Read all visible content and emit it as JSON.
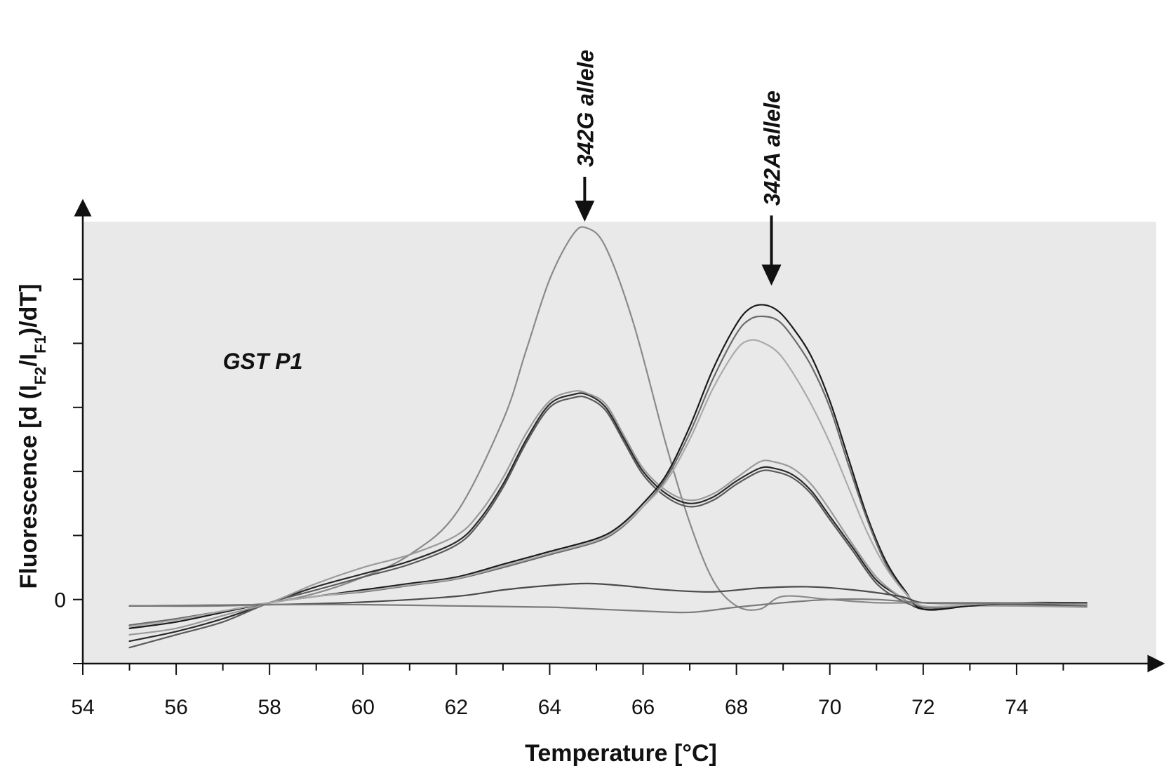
{
  "chart_data": {
    "type": "line",
    "title": "",
    "xlabel": "Temperature [°C]",
    "ylabel": "Fluorescence [d (IF2/IF1)/dT]",
    "ylabel_parts": {
      "pre": "Fluorescence [d (I",
      "sub1": "F2",
      "mid": "/I",
      "sub2": "F1",
      "post": ")/dT]"
    },
    "xlim": [
      54,
      76
    ],
    "ylim": [
      -1,
      5.9
    ],
    "x_ticks": [
      54,
      56,
      58,
      60,
      62,
      64,
      66,
      68,
      70,
      72,
      74
    ],
    "y_tick_labels": [
      {
        "value": 0,
        "label": "0"
      }
    ],
    "y_minor_ticks": [
      -1,
      0,
      1,
      2,
      3,
      4,
      5
    ],
    "grid": false,
    "annotations": [
      {
        "text": "GST P1",
        "x": 57.0,
        "y": 3.6
      },
      {
        "text": "342G allele",
        "x": 64.75,
        "arrow_tip_y": 5.9
      },
      {
        "text": "342A allele",
        "x": 68.75,
        "arrow_tip_y": 4.9
      }
    ],
    "series": [
      {
        "color": "#8a8a8a",
        "x": [
          55,
          57,
          58,
          59,
          60,
          61,
          62,
          63,
          63.5,
          64,
          64.5,
          64.8,
          65.2,
          65.8,
          66.5,
          67,
          67.5,
          68,
          68.5,
          69,
          70,
          71,
          72,
          73,
          74,
          75.5
        ],
        "y": [
          -0.1,
          -0.1,
          -0.05,
          0.1,
          0.35,
          0.7,
          1.35,
          2.8,
          3.9,
          5.0,
          5.7,
          5.8,
          5.5,
          4.3,
          2.4,
          1.2,
          0.3,
          -0.1,
          -0.15,
          0.05,
          0.0,
          -0.05,
          -0.05,
          -0.05,
          -0.05,
          -0.05
        ]
      },
      {
        "color": "#2a2a2a",
        "x": [
          55,
          56,
          57,
          58,
          59,
          60,
          61,
          62,
          62.5,
          63,
          63.5,
          64,
          64.5,
          64.8,
          65.2,
          65.6,
          66,
          66.5,
          67,
          67.5,
          68,
          68.5,
          68.8,
          69.2,
          69.6,
          70,
          70.5,
          71,
          71.5,
          72,
          73,
          74,
          75.5
        ],
        "y": [
          -0.65,
          -0.5,
          -0.3,
          -0.05,
          0.2,
          0.4,
          0.6,
          0.9,
          1.25,
          1.8,
          2.5,
          3.05,
          3.2,
          3.2,
          3.0,
          2.5,
          2.0,
          1.65,
          1.5,
          1.6,
          1.85,
          2.05,
          2.05,
          1.95,
          1.7,
          1.3,
          0.8,
          0.3,
          0.05,
          -0.15,
          -0.1,
          -0.08,
          -0.08
        ]
      },
      {
        "color": "#5a5a5a",
        "x": [
          55,
          56,
          57,
          58,
          59,
          60,
          61,
          62,
          62.5,
          63,
          63.5,
          64,
          64.5,
          64.8,
          65.2,
          65.6,
          66,
          66.5,
          67,
          67.5,
          68,
          68.5,
          68.8,
          69.2,
          69.6,
          70,
          70.5,
          71,
          71.5,
          72,
          73,
          74,
          75.5
        ],
        "y": [
          -0.75,
          -0.55,
          -0.35,
          -0.05,
          0.15,
          0.35,
          0.55,
          0.85,
          1.2,
          1.75,
          2.45,
          3.0,
          3.15,
          3.15,
          2.95,
          2.45,
          1.95,
          1.6,
          1.45,
          1.55,
          1.8,
          2.0,
          2.0,
          1.9,
          1.65,
          1.25,
          0.75,
          0.25,
          0.0,
          -0.12,
          -0.1,
          -0.08,
          -0.1
        ]
      },
      {
        "color": "#9a9a9a",
        "x": [
          55,
          56,
          57,
          58,
          59,
          60,
          61,
          62,
          62.5,
          63,
          63.5,
          64,
          64.5,
          64.8,
          65.2,
          65.6,
          66,
          66.5,
          67,
          67.5,
          68,
          68.5,
          68.8,
          69.2,
          69.6,
          70,
          70.5,
          71,
          71.5,
          72,
          73,
          74,
          75.5
        ],
        "y": [
          -0.55,
          -0.45,
          -0.25,
          -0.05,
          0.25,
          0.5,
          0.7,
          1.0,
          1.35,
          1.9,
          2.6,
          3.1,
          3.25,
          3.22,
          3.05,
          2.55,
          2.05,
          1.7,
          1.55,
          1.65,
          1.9,
          2.15,
          2.15,
          2.05,
          1.8,
          1.4,
          0.85,
          0.35,
          0.05,
          -0.12,
          -0.1,
          -0.1,
          -0.12
        ]
      },
      {
        "color": "#1a1a1a",
        "x": [
          55,
          56,
          57,
          58,
          59,
          60,
          61,
          62,
          63,
          64,
          65,
          65.5,
          66,
          66.5,
          67,
          67.5,
          68,
          68.3,
          68.6,
          68.9,
          69.2,
          69.6,
          70,
          70.4,
          70.8,
          71.2,
          71.6,
          72,
          73,
          74,
          75.5
        ],
        "y": [
          -0.45,
          -0.35,
          -0.2,
          -0.05,
          0.05,
          0.15,
          0.25,
          0.35,
          0.55,
          0.75,
          0.95,
          1.15,
          1.5,
          1.95,
          2.7,
          3.6,
          4.3,
          4.55,
          4.6,
          4.5,
          4.25,
          3.8,
          3.1,
          2.2,
          1.3,
          0.6,
          0.15,
          -0.15,
          -0.1,
          -0.05,
          -0.05
        ]
      },
      {
        "color": "#6a6a6a",
        "x": [
          55,
          56,
          57,
          58,
          59,
          60,
          61,
          62,
          63,
          64,
          65,
          65.5,
          66,
          66.5,
          67,
          67.5,
          68,
          68.3,
          68.6,
          68.9,
          69.2,
          69.6,
          70,
          70.4,
          70.8,
          71.2,
          71.6,
          72,
          73,
          74,
          75.5
        ],
        "y": [
          -0.4,
          -0.3,
          -0.18,
          -0.05,
          0.05,
          0.12,
          0.22,
          0.32,
          0.5,
          0.7,
          0.9,
          1.1,
          1.45,
          1.9,
          2.6,
          3.45,
          4.15,
          4.38,
          4.42,
          4.35,
          4.1,
          3.65,
          3.0,
          2.1,
          1.25,
          0.55,
          0.12,
          -0.12,
          -0.08,
          -0.05,
          -0.08
        ]
      },
      {
        "color": "#aaaaaa",
        "x": [
          55,
          56,
          57,
          58,
          59,
          60,
          61,
          62,
          63,
          64,
          65,
          65.5,
          66,
          66.5,
          67,
          67.5,
          68,
          68.3,
          68.6,
          68.9,
          69.2,
          69.6,
          70,
          70.4,
          70.8,
          71.2,
          71.6,
          72,
          73,
          74,
          75.5
        ],
        "y": [
          -0.42,
          -0.32,
          -0.18,
          -0.05,
          0.05,
          0.13,
          0.23,
          0.33,
          0.52,
          0.72,
          0.92,
          1.12,
          1.45,
          1.85,
          2.5,
          3.3,
          3.9,
          4.05,
          4.0,
          3.85,
          3.55,
          3.05,
          2.45,
          1.75,
          1.05,
          0.5,
          0.12,
          -0.1,
          -0.08,
          -0.05,
          -0.08
        ]
      },
      {
        "color": "#4a4a4a",
        "x": [
          55,
          58,
          60,
          62,
          63,
          64,
          64.8,
          65.5,
          66.5,
          67.5,
          68.5,
          69.5,
          70.5,
          71.5,
          72,
          73,
          74,
          75.5
        ],
        "y": [
          -0.1,
          -0.08,
          -0.04,
          0.05,
          0.15,
          0.22,
          0.25,
          0.22,
          0.15,
          0.12,
          0.18,
          0.2,
          0.15,
          0.05,
          -0.05,
          -0.06,
          -0.06,
          -0.06
        ]
      },
      {
        "color": "#7a7a7a",
        "x": [
          55,
          58,
          60,
          62,
          64,
          65,
          66,
          67,
          68,
          69,
          70,
          71,
          72,
          73,
          74,
          75.5
        ],
        "y": [
          -0.1,
          -0.08,
          -0.08,
          -0.1,
          -0.12,
          -0.15,
          -0.18,
          -0.2,
          -0.12,
          -0.05,
          0.0,
          0.0,
          -0.05,
          -0.06,
          -0.06,
          -0.06
        ]
      }
    ]
  }
}
